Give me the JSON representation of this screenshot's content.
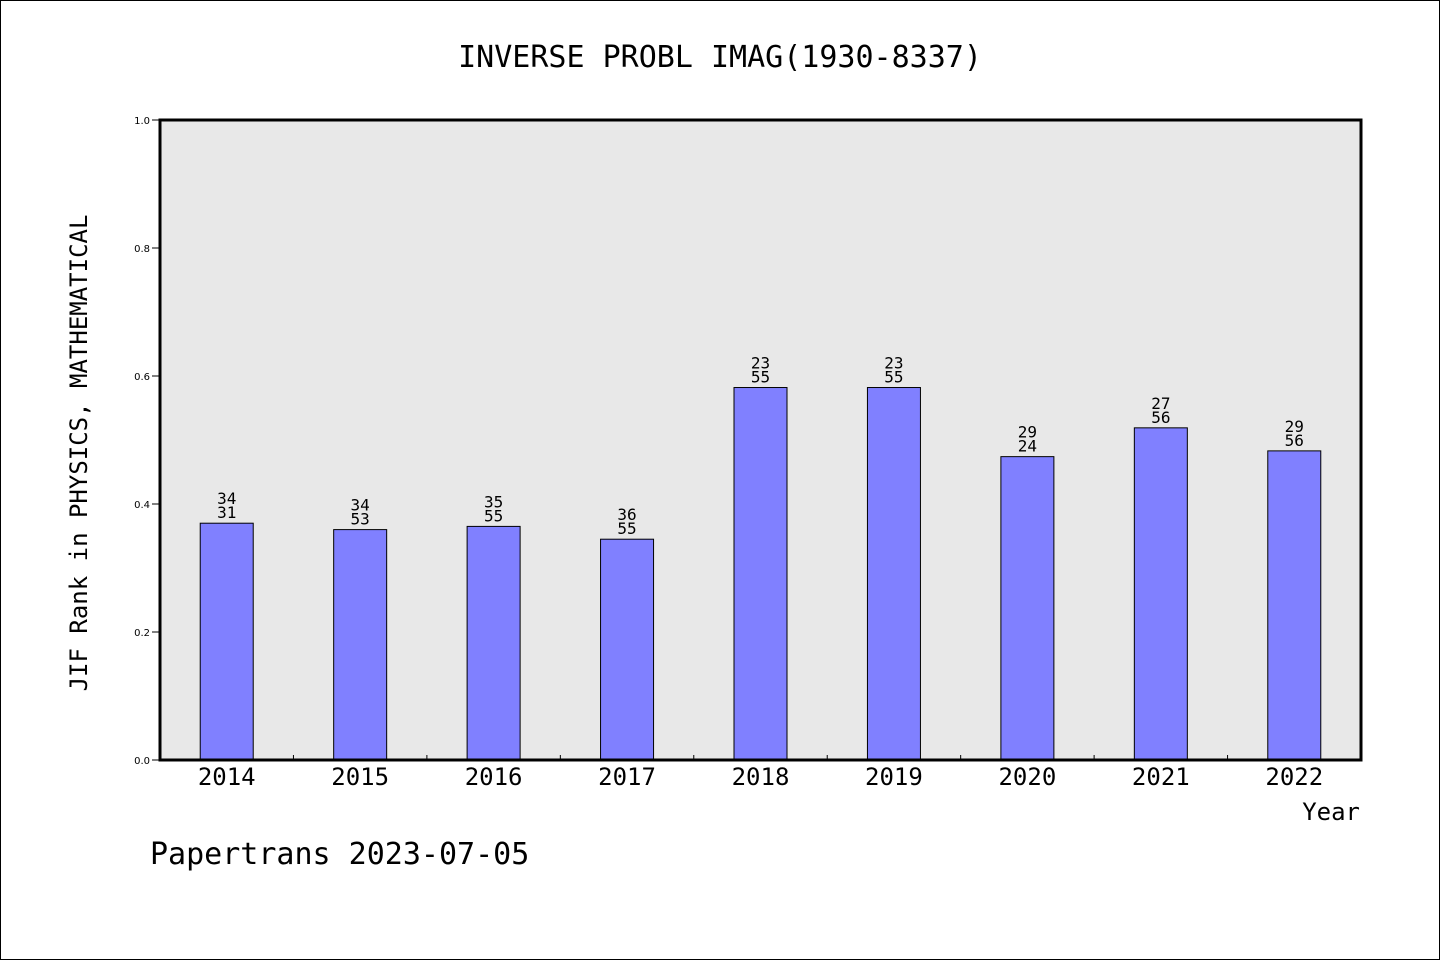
{
  "chart_data": {
    "type": "bar",
    "title": "INVERSE PROBL IMAG(1930-8337)",
    "xlabel": "Year",
    "ylabel": "JIF Rank in PHYSICS, MATHEMATICAL",
    "ylim": [
      0.0,
      1.0
    ],
    "yticks": [
      "0.0",
      "0.2",
      "0.4",
      "0.6",
      "0.8",
      "1.0"
    ],
    "categories": [
      "2014",
      "2015",
      "2016",
      "2017",
      "2018",
      "2019",
      "2020",
      "2021",
      "2022"
    ],
    "values": [
      0.37,
      0.36,
      0.365,
      0.345,
      0.582,
      0.582,
      0.474,
      0.519,
      0.483
    ],
    "labels_top": [
      "34",
      "34",
      "35",
      "36",
      "23",
      "23",
      "29",
      "27",
      "29"
    ],
    "labels_bottom": [
      "31",
      "53",
      "55",
      "55",
      "55",
      "55",
      "24",
      "56",
      "56"
    ],
    "bar_color": "#8080ff",
    "plot_background": "#e8e8e8",
    "grid": false,
    "legend": "none"
  },
  "footer": "Papertrans 2023-07-05"
}
